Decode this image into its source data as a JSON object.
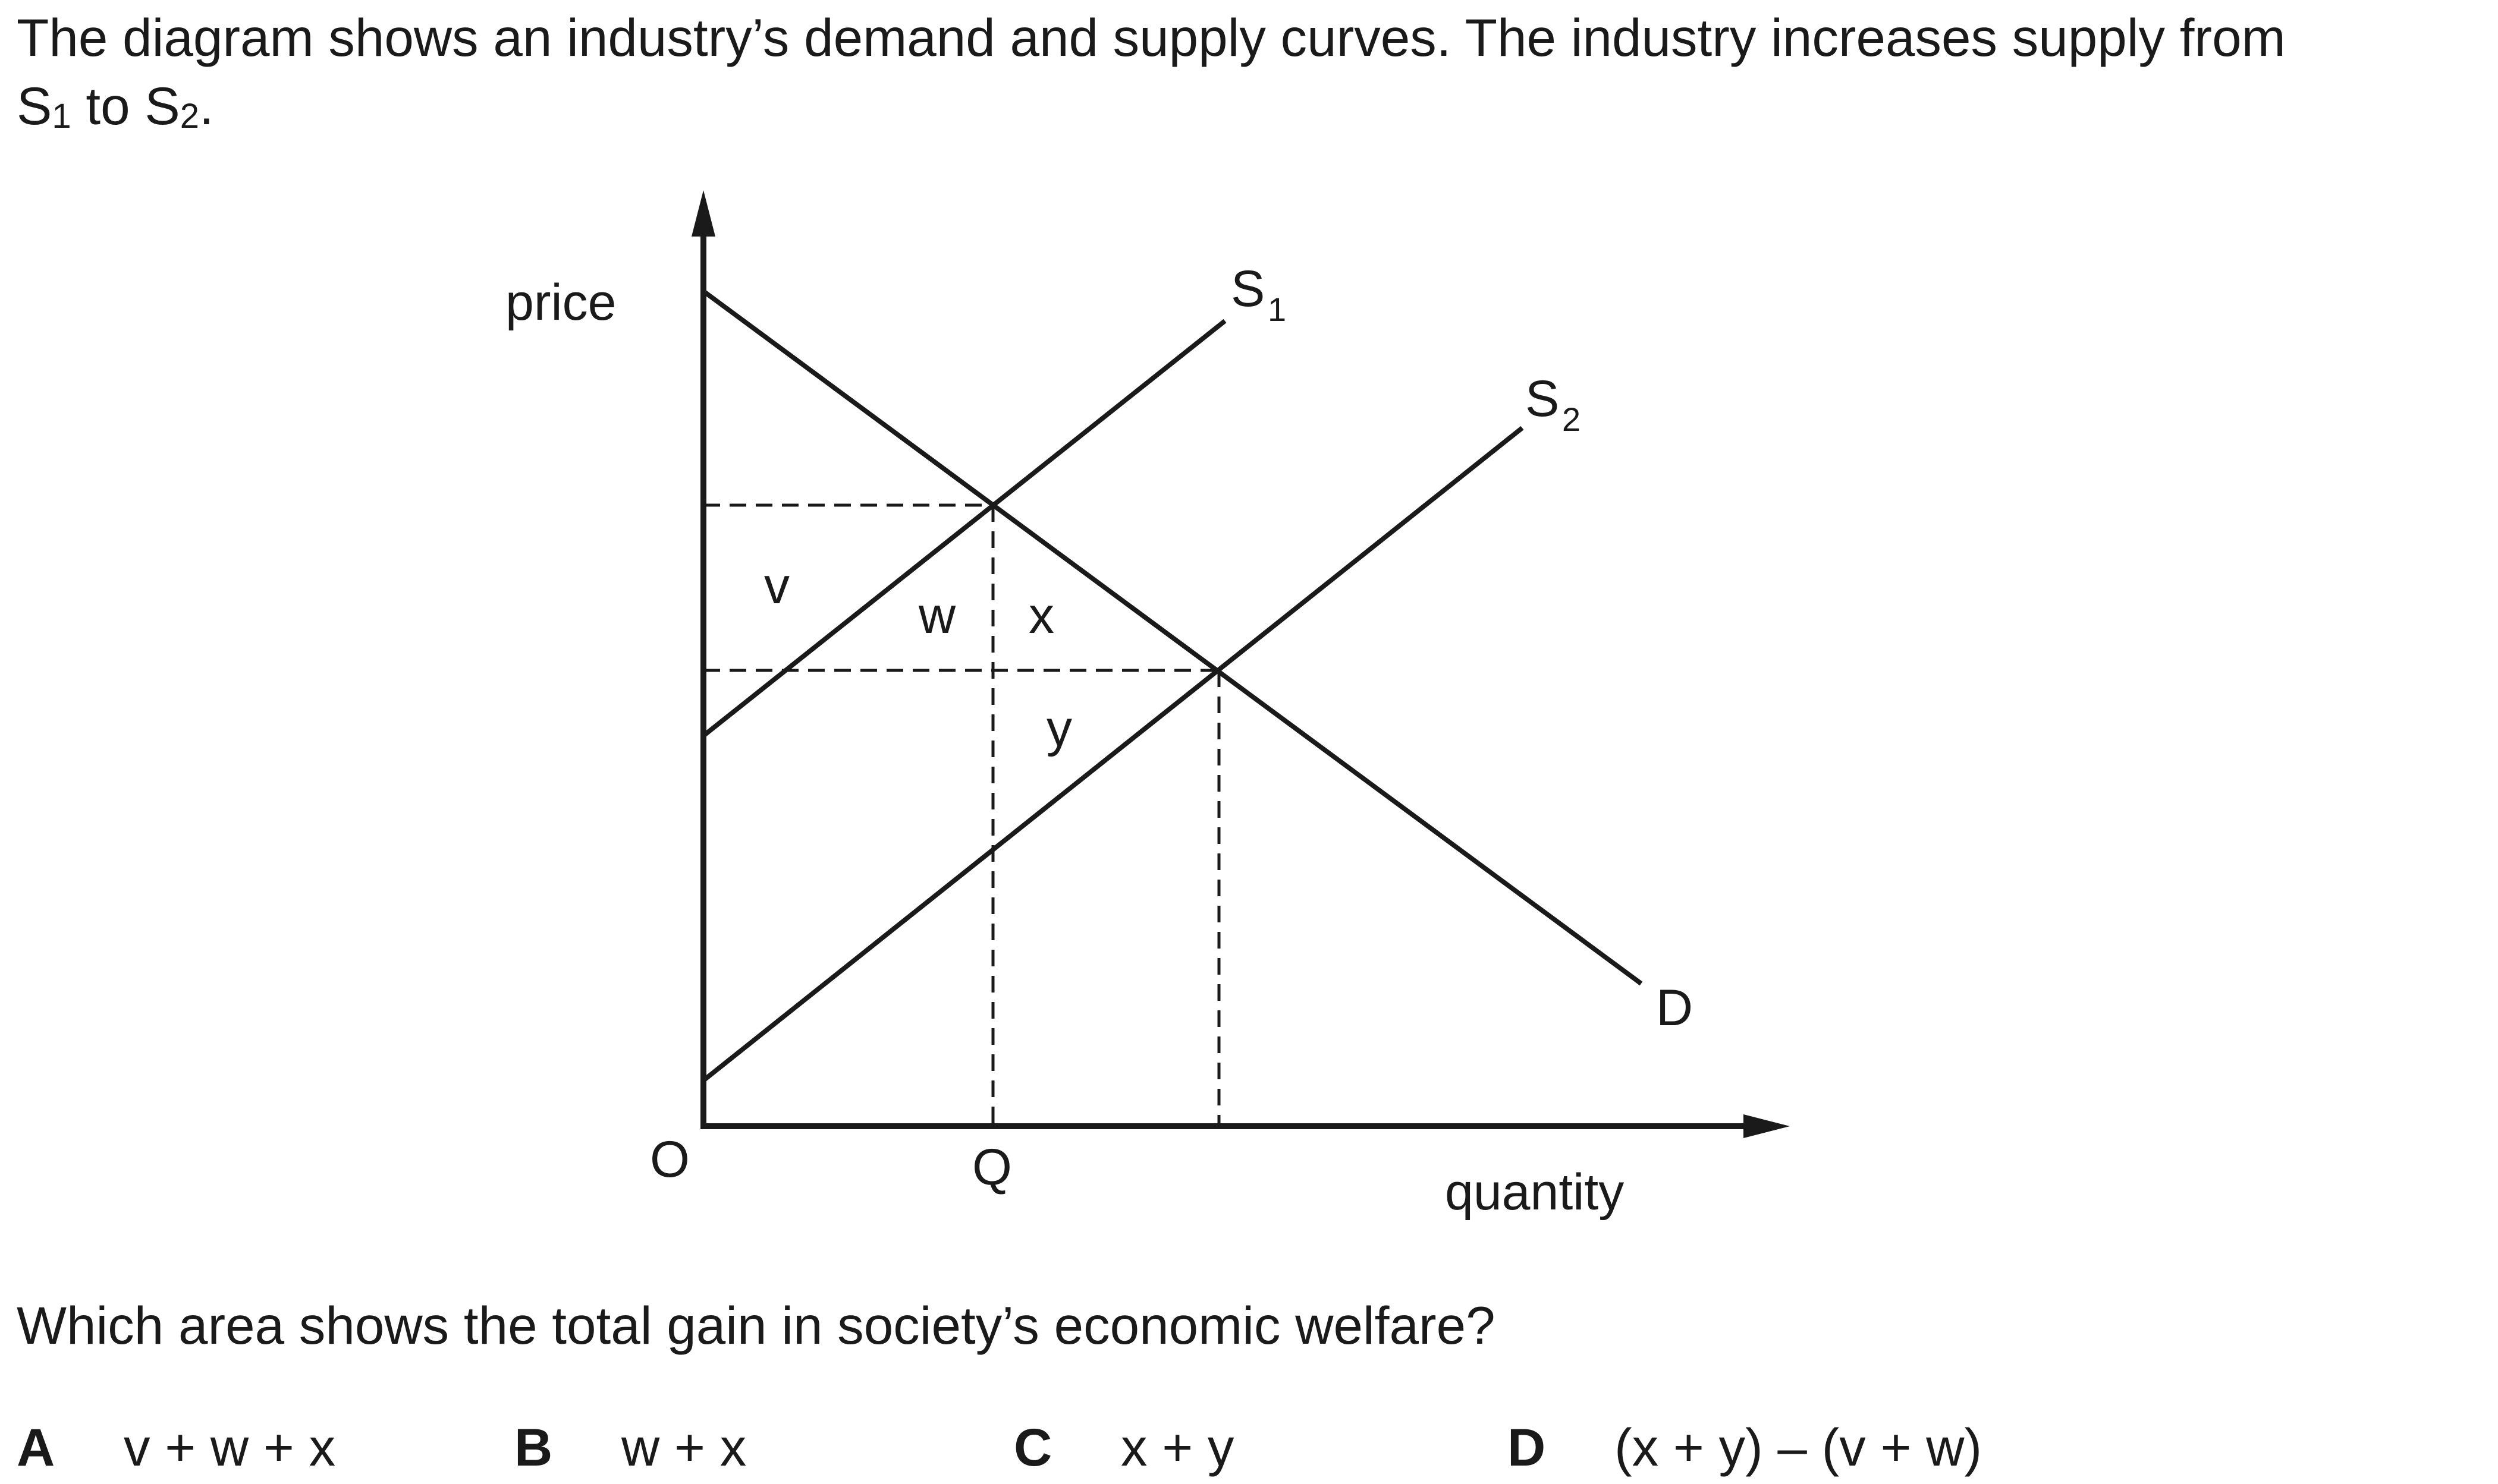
{
  "question": {
    "intro_prefix": "The diagram shows an industry’s demand and supply curves. The industry increases supply from",
    "intro_s": "S",
    "intro_s1_sub": "1",
    "intro_to": " to ",
    "intro_s2_sub": "2",
    "intro_end": ".",
    "prompt": "Which area shows the total gain in society’s economic welfare?"
  },
  "diagram": {
    "y_axis_label": "price",
    "x_axis_label": "quantity",
    "origin_label": "O",
    "q_label": "Q",
    "s1_label": "S",
    "s1_sub": "1",
    "s2_label": "S",
    "s2_sub": "2",
    "d_label": "D",
    "areas": [
      "v",
      "w",
      "x",
      "y"
    ]
  },
  "options": [
    {
      "letter": "A",
      "text": "v + w + x"
    },
    {
      "letter": "B",
      "text": "w + x"
    },
    {
      "letter": "C",
      "text": "x + y"
    },
    {
      "letter": "D",
      "text": "(x + y) – (v + w)"
    }
  ]
}
